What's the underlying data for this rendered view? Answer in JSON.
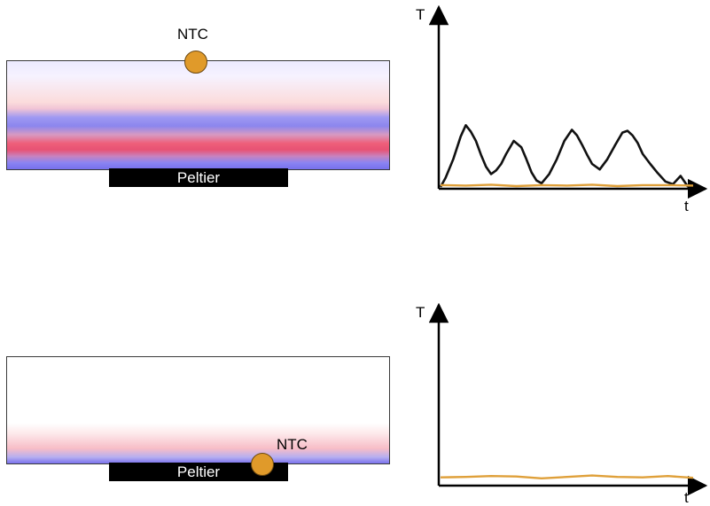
{
  "panels": [
    {
      "id": "top",
      "sensor_label": "NTC",
      "peltier_label": "Peltier",
      "y_axis_label": "T",
      "x_axis_label": "t"
    },
    {
      "id": "bottom",
      "sensor_label": "NTC",
      "peltier_label": "Peltier",
      "y_axis_label": "T",
      "x_axis_label": "t"
    }
  ],
  "colors": {
    "ntc": "#e09a2a",
    "measured_trace": "#111111",
    "reference_trace": "#dfa03a",
    "peltier": "#000000"
  },
  "chart_data": [
    {
      "type": "line",
      "ylim": [
        0,
        10
      ],
      "xlim": [
        0,
        10
      ],
      "series": [
        {
          "x": [
            0,
            0.2,
            0.5,
            0.8,
            1.0,
            1.2,
            1.4,
            1.6,
            1.8,
            2.0,
            2.2,
            2.4,
            2.6,
            2.9,
            3.2,
            3.4,
            3.6,
            3.8,
            4.0,
            4.3,
            4.6,
            4.9,
            5.2,
            5.4,
            5.6,
            5.8,
            6.0,
            6.3,
            6.6,
            6.9,
            7.2,
            7.4,
            7.6,
            7.8,
            8.0,
            8.3,
            8.6,
            8.9,
            9.2,
            9.5,
            9.8
          ],
          "values": [
            0,
            1.0,
            3.0,
            5.5,
            6.7,
            6.0,
            5.0,
            3.5,
            2.2,
            1.4,
            1.8,
            2.5,
            3.6,
            5.0,
            4.3,
            3.0,
            1.6,
            0.7,
            0.4,
            1.4,
            3.0,
            5.0,
            6.2,
            5.6,
            4.6,
            3.5,
            2.5,
            1.9,
            3.0,
            4.5,
            5.9,
            6.1,
            5.6,
            4.8,
            3.6,
            2.5,
            1.5,
            0.6,
            0.3,
            1.2,
            0
          ]
        },
        {
          "x": [
            0,
            1,
            2,
            3,
            4,
            5,
            6,
            7,
            8,
            9,
            10
          ],
          "values": [
            0.2,
            0.15,
            0.25,
            0.1,
            0.2,
            0.15,
            0.25,
            0.1,
            0.2,
            0.2,
            0.15
          ]
        }
      ]
    },
    {
      "type": "line",
      "ylim": [
        0,
        10
      ],
      "xlim": [
        0,
        10
      ],
      "series": [
        {
          "x": [
            0,
            1,
            2,
            3,
            4,
            5,
            6,
            7,
            8,
            9,
            10
          ],
          "values": [
            0.7,
            0.75,
            0.85,
            0.8,
            0.6,
            0.75,
            0.9,
            0.75,
            0.7,
            0.85,
            0.65
          ]
        }
      ]
    }
  ]
}
